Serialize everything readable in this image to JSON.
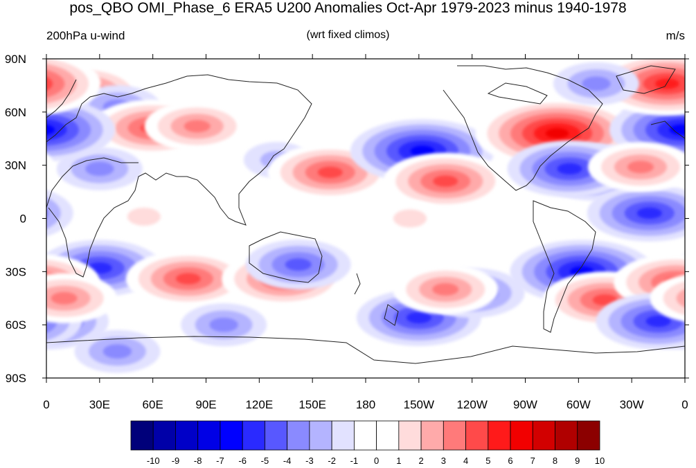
{
  "title": "pos_QBO OMI_Phase_6 ERA5 U200 Anomalies Oct-Apr 1979-2023 minus 1940-1978",
  "subtitle_left": "200hPa u-wind",
  "subtitle_center": "(wrt fixed climos)",
  "subtitle_right": "m/s",
  "lat_labels": [
    "90N",
    "60N",
    "30N",
    "0",
    "30S",
    "60S",
    "90S"
  ],
  "lon_labels": [
    "0",
    "30E",
    "60E",
    "90E",
    "120E",
    "150E",
    "180",
    "150W",
    "120W",
    "90W",
    "60W",
    "30W",
    "0"
  ],
  "colorbar": {
    "labels": [
      "-10",
      "-9",
      "-8",
      "-7",
      "-6",
      "-5",
      "-4",
      "-3",
      "-2",
      "-1",
      "0",
      "1",
      "2",
      "3",
      "4",
      "5",
      "6",
      "7",
      "8",
      "9",
      "10"
    ],
    "colors": [
      "#00007a",
      "#0000a8",
      "#0000c8",
      "#0000e6",
      "#0000ff",
      "#2a2aff",
      "#5858ff",
      "#8a8aff",
      "#b4b4ff",
      "#e2e2ff",
      "#ffffff",
      "#ffffff",
      "#ffdcdc",
      "#ffaaaa",
      "#ff7a7a",
      "#ff4a4a",
      "#ff1a1a",
      "#f20000",
      "#d20000",
      "#b00000",
      "#8c0000"
    ]
  },
  "anomaly_features": [
    {
      "lon": 20,
      "lat": 71,
      "value": 5,
      "sign": "positive"
    },
    {
      "lon": 0,
      "lat": 52,
      "value": -6,
      "sign": "negative"
    },
    {
      "lon": 40,
      "lat": 63,
      "value": -3,
      "sign": "negative"
    },
    {
      "lon": 60,
      "lat": 51,
      "value": 5,
      "sign": "positive"
    },
    {
      "lon": 85,
      "lat": 52,
      "value": 4,
      "sign": "positive"
    },
    {
      "lon": 30,
      "lat": 28,
      "value": -3,
      "sign": "negative"
    },
    {
      "lon": 130,
      "lat": 33,
      "value": -2,
      "sign": "negative"
    },
    {
      "lon": 160,
      "lat": 26,
      "value": 5,
      "sign": "positive"
    },
    {
      "lon": -148,
      "lat": 38,
      "value": -6,
      "sign": "negative"
    },
    {
      "lon": -135,
      "lat": 21,
      "value": 5,
      "sign": "positive"
    },
    {
      "lon": -72,
      "lat": 48,
      "value": 7,
      "sign": "positive"
    },
    {
      "lon": -50,
      "lat": 26,
      "value": -5,
      "sign": "negative"
    },
    {
      "lon": -2,
      "lat": 50,
      "value": -6,
      "sign": "negative"
    },
    {
      "lon": -10,
      "lat": 76,
      "value": 6,
      "sign": "positive"
    },
    {
      "lon": -50,
      "lat": 76,
      "value": -3,
      "sign": "negative"
    },
    {
      "lon": -65,
      "lat": 28,
      "value": -5,
      "sign": "negative"
    },
    {
      "lon": -20,
      "lat": 3,
      "value": -5,
      "sign": "negative"
    },
    {
      "lon": -25,
      "lat": 29,
      "value": 4,
      "sign": "positive"
    },
    {
      "lon": 30,
      "lat": -28,
      "value": -5,
      "sign": "negative"
    },
    {
      "lon": 80,
      "lat": -34,
      "value": 5,
      "sign": "positive"
    },
    {
      "lon": 134,
      "lat": -34,
      "value": 5,
      "sign": "positive"
    },
    {
      "lon": 142,
      "lat": -26,
      "value": -4,
      "sign": "negative"
    },
    {
      "lon": -150,
      "lat": -56,
      "value": -5,
      "sign": "negative"
    },
    {
      "lon": -120,
      "lat": -42,
      "value": -4,
      "sign": "negative"
    },
    {
      "lon": -135,
      "lat": -40,
      "value": 4,
      "sign": "positive"
    },
    {
      "lon": -58,
      "lat": -30,
      "value": -6,
      "sign": "negative"
    },
    {
      "lon": -45,
      "lat": -46,
      "value": 5,
      "sign": "positive"
    },
    {
      "lon": -5,
      "lat": -36,
      "value": 5,
      "sign": "positive"
    },
    {
      "lon": 0,
      "lat": -58,
      "value": -5,
      "sign": "negative"
    },
    {
      "lon": -15,
      "lat": -58,
      "value": -5,
      "sign": "negative"
    },
    {
      "lon": 10,
      "lat": -45,
      "value": 4,
      "sign": "positive"
    },
    {
      "lon": 100,
      "lat": -60,
      "value": -3,
      "sign": "negative"
    },
    {
      "lon": 40,
      "lat": -75,
      "value": -3,
      "sign": "negative"
    },
    {
      "lon": 55,
      "lat": 1,
      "value": 2,
      "sign": "positive"
    },
    {
      "lon": -155,
      "lat": 0,
      "value": 2,
      "sign": "positive"
    }
  ]
}
